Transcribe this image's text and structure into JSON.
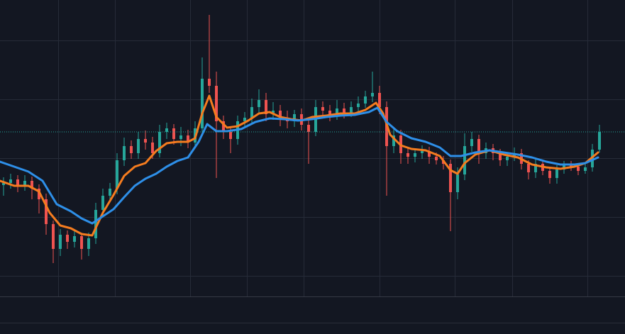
{
  "chart_data": {
    "type": "candlestick",
    "up_color": "#26a69a",
    "down_color": "#ef5350",
    "xlim": [
      -0.5,
      87.6
    ],
    "ylim": [
      0,
      471
    ],
    "grid": true,
    "vgrid": [
      7.7,
      15.7,
      26.3,
      34.3,
      42.3,
      53,
      63.6,
      71.7,
      82.3
    ],
    "hgrid": [
      414,
      331,
      248,
      165,
      82
    ],
    "price_line": {
      "value": 285,
      "color": "#26a69a"
    },
    "x": [
      0,
      1,
      2,
      3,
      4,
      5,
      6,
      7,
      8,
      9,
      10,
      11,
      12,
      13,
      14,
      15,
      16,
      17,
      18,
      19,
      20,
      21,
      22,
      23,
      24,
      25,
      26,
      27,
      28,
      29,
      30,
      31,
      32,
      33,
      34,
      35,
      36,
      37,
      38,
      39,
      40,
      41,
      42,
      43,
      44,
      45,
      46,
      47,
      48,
      49,
      50,
      51,
      52,
      53,
      54,
      55,
      56,
      57,
      58,
      59,
      60,
      61,
      62,
      63,
      64,
      65,
      66,
      67,
      68,
      69,
      70,
      71,
      72,
      73,
      74,
      75,
      76,
      77,
      78,
      79,
      80,
      81,
      82,
      83,
      84
    ],
    "open": [
      210,
      213,
      218,
      210,
      216,
      205,
      190,
      155,
      120,
      140,
      130,
      138,
      120,
      135,
      175,
      195,
      205,
      245,
      265,
      255,
      275,
      270,
      255,
      285,
      290,
      275,
      280,
      270,
      290,
      360,
      350,
      300,
      285,
      275,
      300,
      305,
      320,
      330,
      310,
      315,
      305,
      300,
      310,
      295,
      285,
      320,
      315,
      310,
      318,
      312,
      320,
      325,
      335,
      340,
      320,
      265,
      280,
      255,
      250,
      255,
      258,
      250,
      245,
      240,
      200,
      225,
      265,
      275,
      255,
      262,
      255,
      245,
      250,
      255,
      240,
      228,
      240,
      230,
      220,
      232,
      238,
      236,
      230,
      235,
      260
    ],
    "high": [
      221,
      226,
      224,
      224,
      222,
      211,
      198,
      160,
      148,
      146,
      146,
      143,
      143,
      185,
      205,
      213,
      255,
      277,
      273,
      285,
      287,
      278,
      295,
      298,
      296,
      292,
      288,
      300,
      390,
      450,
      370,
      308,
      293,
      308,
      313,
      332,
      345,
      340,
      327,
      323,
      315,
      316,
      318,
      303,
      330,
      328,
      323,
      330,
      326,
      328,
      335,
      343,
      370,
      350,
      328,
      290,
      288,
      263,
      261,
      266,
      264,
      256,
      251,
      246,
      235,
      283,
      285,
      281,
      270,
      268,
      261,
      256,
      263,
      261,
      245,
      246,
      244,
      234,
      238,
      244,
      244,
      240,
      241,
      268,
      295
    ],
    "low": [
      195,
      205,
      200,
      202,
      190,
      170,
      140,
      100,
      110,
      120,
      122,
      105,
      110,
      127,
      165,
      187,
      197,
      237,
      247,
      247,
      260,
      247,
      249,
      275,
      267,
      265,
      262,
      264,
      284,
      340,
      220,
      275,
      255,
      267,
      290,
      297,
      312,
      300,
      302,
      293,
      290,
      292,
      287,
      240,
      279,
      307,
      300,
      302,
      304,
      306,
      312,
      319,
      327,
      310,
      195,
      255,
      240,
      240,
      242,
      247,
      240,
      239,
      232,
      145,
      190,
      217,
      257,
      240,
      247,
      245,
      237,
      237,
      244,
      232,
      218,
      220,
      224,
      212,
      212,
      226,
      230,
      224,
      226,
      229,
      256
    ],
    "close": [
      213,
      218,
      210,
      216,
      205,
      190,
      155,
      120,
      140,
      130,
      138,
      120,
      135,
      175,
      195,
      205,
      245,
      265,
      255,
      275,
      270,
      255,
      285,
      290,
      275,
      280,
      270,
      290,
      360,
      350,
      300,
      285,
      275,
      300,
      305,
      320,
      330,
      310,
      315,
      305,
      300,
      310,
      295,
      285,
      320,
      315,
      310,
      318,
      312,
      320,
      325,
      335,
      340,
      320,
      265,
      280,
      255,
      250,
      255,
      258,
      250,
      245,
      240,
      200,
      225,
      265,
      275,
      255,
      262,
      255,
      245,
      250,
      255,
      240,
      228,
      240,
      230,
      220,
      232,
      238,
      236,
      230,
      235,
      260,
      285
    ],
    "series": [
      {
        "color": "#f57c1f",
        "x": [
          -0.5,
          1.5,
          3.5,
          5,
          6.5,
          8,
          9.5,
          11,
          12.5,
          14,
          15.5,
          17,
          18.5,
          20,
          21.5,
          23,
          24.5,
          26,
          27,
          28,
          29,
          30,
          31.5,
          33,
          34.5,
          36,
          37.5,
          39,
          40.5,
          42,
          43.5,
          45.5,
          47.5,
          49.5,
          51,
          52.5,
          53.5,
          54.5,
          56,
          57.5,
          59.5,
          61.5,
          63,
          64,
          65,
          66.5,
          68.5,
          70.5,
          72.5,
          74.5,
          76.5,
          78.5,
          80.5,
          82,
          83.8
        ],
        "values": [
          216,
          209,
          209,
          201,
          171,
          153,
          149,
          141,
          139,
          171,
          196,
          223,
          236,
          241,
          258,
          269,
          271,
          271,
          276,
          311,
          336,
          306,
          291,
          293,
          301,
          311,
          313,
          306,
          303,
          301,
          306,
          308,
          311,
          311,
          316,
          326,
          311,
          281,
          266,
          261,
          259,
          251,
          231,
          226,
          241,
          253,
          259,
          253,
          249,
          239,
          235,
          233,
          236,
          241,
          256
        ]
      },
      {
        "color": "#2e8fe8",
        "x": [
          -0.5,
          1.5,
          3.5,
          5.5,
          7.5,
          9.5,
          11,
          12.5,
          14,
          15.5,
          17,
          18.5,
          20,
          21.5,
          23,
          24.5,
          26,
          27.5,
          28.7,
          30,
          31.5,
          33.5,
          35.5,
          37.5,
          39.5,
          41.5,
          43.5,
          45.5,
          47.5,
          49.5,
          51.5,
          52.7,
          54,
          55.5,
          57.5,
          59.5,
          61.5,
          63,
          64.5,
          66.5,
          68.5,
          70.5,
          72.5,
          74.5,
          76.5,
          78.5,
          80.5,
          82,
          83.8
        ],
        "values": [
          243,
          236,
          229,
          216,
          183,
          173,
          163,
          156,
          166,
          176,
          193,
          209,
          219,
          226,
          236,
          244,
          249,
          271,
          296,
          286,
          286,
          289,
          299,
          304,
          303,
          301,
          303,
          306,
          308,
          309,
          313,
          319,
          299,
          286,
          276,
          271,
          263,
          251,
          251,
          256,
          259,
          256,
          253,
          249,
          243,
          239,
          239,
          241,
          249
        ]
      }
    ]
  }
}
